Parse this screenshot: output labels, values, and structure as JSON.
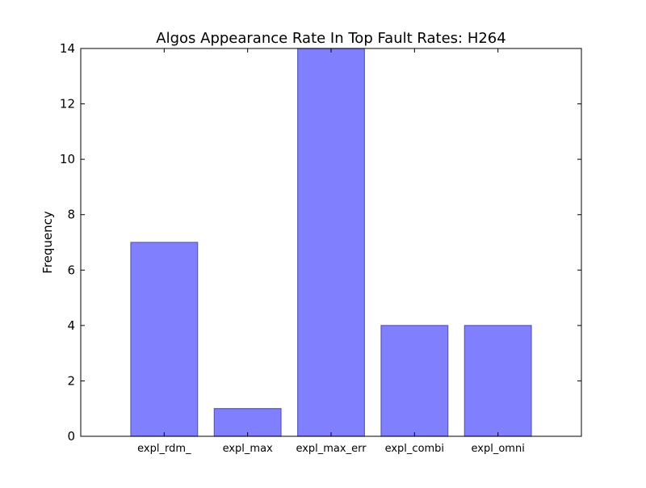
{
  "chart_data": {
    "type": "bar",
    "title": "Algos Appearance Rate In Top Fault Rates: H264",
    "xlabel": "",
    "ylabel": "Frequency",
    "categories": [
      "expl_rdm_",
      "expl_max",
      "expl_max_err",
      "expl_combi",
      "expl_omni"
    ],
    "values": [
      7,
      1,
      14,
      4,
      4
    ],
    "ylim": [
      0,
      14
    ],
    "yticks": [
      0,
      2,
      4,
      6,
      8,
      10,
      12,
      14
    ],
    "grid": false,
    "bar_color": "#8080ff",
    "bar_edge_color": "#5a5ab4"
  }
}
